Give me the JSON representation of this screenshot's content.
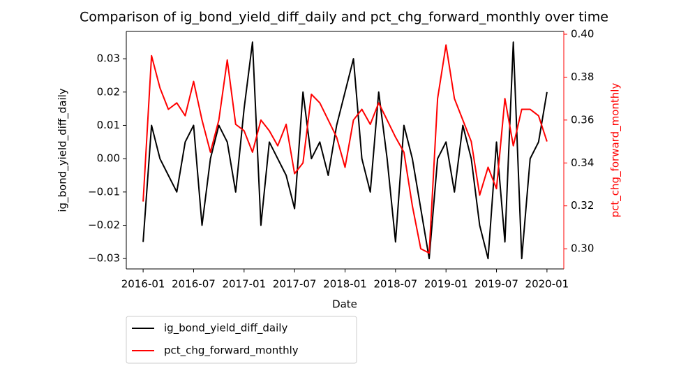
{
  "chart_data": {
    "type": "line",
    "title": "Comparison of ig_bond_yield_diff_daily and pct_chg_forward_monthly over time",
    "xlabel": "Date",
    "ylabel": "ig_bond_yield_diff_daily",
    "y2label": "pct_chg_forward_monthly",
    "x": [
      "2016-01",
      "2016-02",
      "2016-03",
      "2016-04",
      "2016-05",
      "2016-06",
      "2016-07",
      "2016-08",
      "2016-09",
      "2016-10",
      "2016-11",
      "2016-12",
      "2017-01",
      "2017-02",
      "2017-03",
      "2017-04",
      "2017-05",
      "2017-06",
      "2017-07",
      "2017-08",
      "2017-09",
      "2017-10",
      "2017-11",
      "2017-12",
      "2018-01",
      "2018-02",
      "2018-03",
      "2018-04",
      "2018-05",
      "2018-06",
      "2018-07",
      "2018-08",
      "2018-09",
      "2018-10",
      "2018-11",
      "2018-12",
      "2019-01",
      "2019-02",
      "2019-03",
      "2019-04",
      "2019-05",
      "2019-06",
      "2019-07",
      "2019-08",
      "2019-09",
      "2019-10",
      "2019-11",
      "2019-12",
      "2020-01"
    ],
    "series": [
      {
        "name": "ig_bond_yield_diff_daily",
        "color": "#000000",
        "values": [
          -0.025,
          0.01,
          0,
          -0.005,
          -0.01,
          0.005,
          0.01,
          -0.02,
          0,
          0.01,
          0.005,
          -0.01,
          0.015,
          0.035,
          -0.02,
          0.005,
          0,
          -0.005,
          -0.015,
          0.02,
          0,
          0.005,
          -0.005,
          0.01,
          0.02,
          0.03,
          0,
          -0.01,
          0.02,
          0,
          -0.025,
          0.01,
          0,
          -0.015,
          -0.03,
          0,
          0.005,
          -0.01,
          0.01,
          0,
          -0.02,
          -0.03,
          0.005,
          -0.025,
          0.035,
          -0.03,
          0,
          0.005,
          0.02
        ]
      },
      {
        "name": "pct_chg_forward_monthly",
        "color": "#ff0000",
        "axis": "y2",
        "values": [
          0.322,
          0.39,
          0.375,
          0.365,
          0.368,
          0.362,
          0.378,
          0.36,
          0.345,
          0.36,
          0.388,
          0.358,
          0.355,
          0.345,
          0.36,
          0.355,
          0.348,
          0.358,
          0.335,
          0.34,
          0.372,
          0.368,
          0.36,
          0.352,
          0.338,
          0.36,
          0.365,
          0.358,
          0.368,
          0.36,
          0.352,
          0.345,
          0.32,
          0.3,
          0.298,
          0.37,
          0.395,
          0.37,
          0.36,
          0.35,
          0.325,
          0.338,
          0.328,
          0.37,
          0.348,
          0.365,
          0.365,
          0.362,
          0.35
        ]
      }
    ],
    "xlim": [
      "2015-11",
      "2020-03"
    ],
    "xticks": [
      "2016-01",
      "2016-07",
      "2017-01",
      "2017-07",
      "2018-01",
      "2018-07",
      "2019-01",
      "2019-07",
      "2020-01"
    ],
    "ylim": [
      -0.0331,
      0.0382
    ],
    "yticks": [
      {
        "value": -0.03,
        "label": "−0.03"
      },
      {
        "value": -0.02,
        "label": "−0.02"
      },
      {
        "value": -0.01,
        "label": "−0.01"
      },
      {
        "value": 0,
        "label": "0.00"
      },
      0.01,
      0.02,
      0.03
    ],
    "y2lim": [
      0.2906,
      0.4013
    ],
    "y2ticks": [
      {
        "value": 0.3,
        "label": "0.30"
      },
      0.32,
      0.34,
      0.36,
      0.38,
      {
        "value": 0.4,
        "label": "0.40"
      }
    ],
    "y2color": "#ff0000",
    "legend": "below left"
  }
}
